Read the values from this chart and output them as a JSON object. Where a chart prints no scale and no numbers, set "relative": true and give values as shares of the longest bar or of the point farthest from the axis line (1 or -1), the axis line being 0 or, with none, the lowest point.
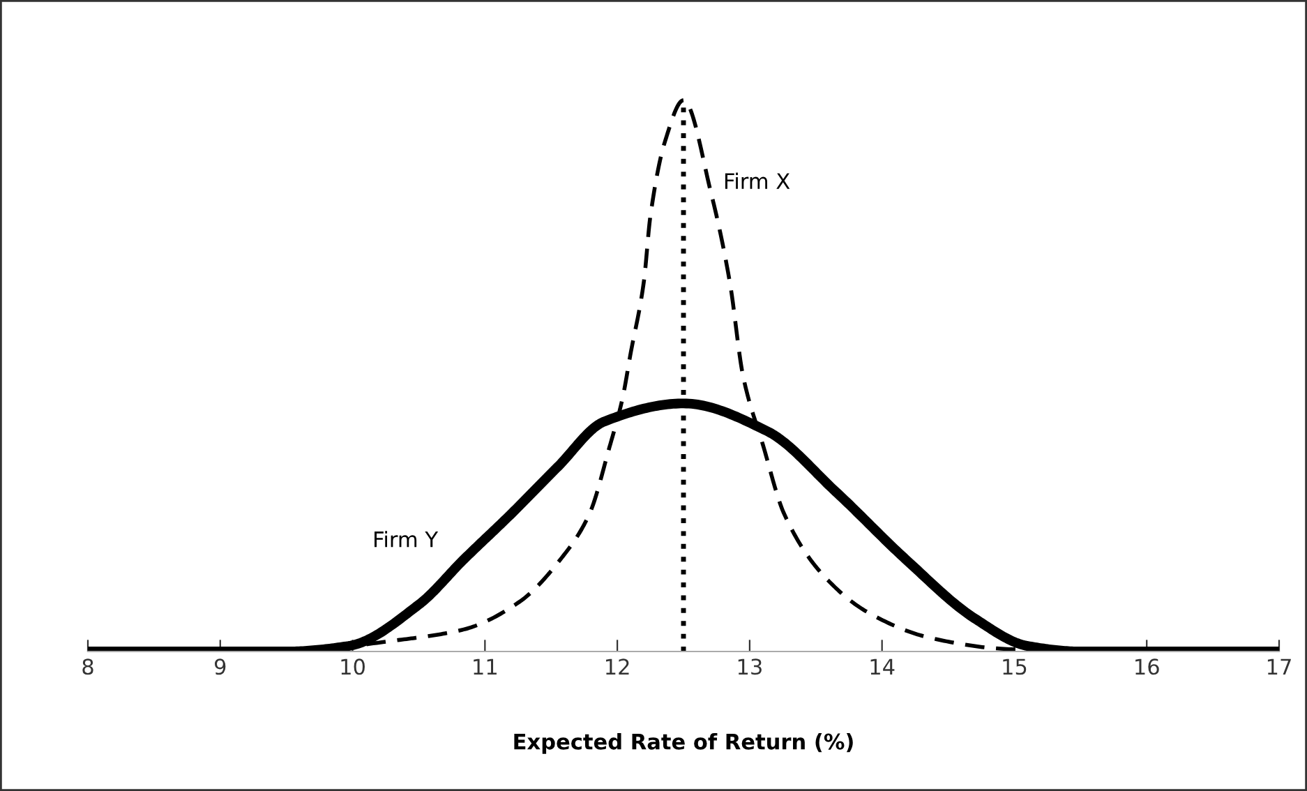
{
  "chart_data": {
    "type": "line",
    "relative": true,
    "xlabel": "Expected Rate of Return (%)",
    "xlim": [
      8,
      17
    ],
    "xticks": [
      8,
      9,
      10,
      11,
      12,
      13,
      14,
      15,
      16,
      17
    ],
    "grid": false,
    "legend": false,
    "tick_labels": "x",
    "series": [
      {
        "name": "Firm X",
        "color": "#000000",
        "line_style": "dashed",
        "x": [
          8,
          9,
          9.5,
          10.32,
          10.84,
          11.26,
          11.58,
          11.79,
          11.94,
          12.04,
          12.1,
          12.2,
          12.25,
          12.36,
          12.5,
          12.71,
          12.85,
          12.95,
          13.1,
          13.26,
          13.55,
          13.9,
          14.36,
          14.9,
          15.5,
          17
        ],
        "values": [
          0,
          0,
          0,
          0.02,
          0.04,
          0.09,
          0.17,
          0.25,
          0.37,
          0.46,
          0.54,
          0.67,
          0.79,
          0.925,
          1.0,
          0.83,
          0.67,
          0.5,
          0.375,
          0.25,
          0.14,
          0.07,
          0.025,
          0.005,
          0,
          0
        ]
      },
      {
        "name": "Firm Y",
        "color": "#000000",
        "line_style": "solid",
        "x": [
          8,
          9,
          9.5,
          9.97,
          10.5,
          10.84,
          11.2,
          11.55,
          11.9,
          12.5,
          13.13,
          13.65,
          14.18,
          14.7,
          15.1,
          15.5,
          17
        ],
        "values": [
          0,
          0,
          0,
          0.01,
          0.085,
          0.167,
          0.25,
          0.335,
          0.417,
          0.45,
          0.4,
          0.29,
          0.167,
          0.06,
          0.01,
          0,
          0
        ]
      }
    ],
    "ref_lines": [
      {
        "axis": "x",
        "value": 12.5,
        "label": null,
        "line_style": "dotted",
        "color": "#000000"
      }
    ]
  }
}
